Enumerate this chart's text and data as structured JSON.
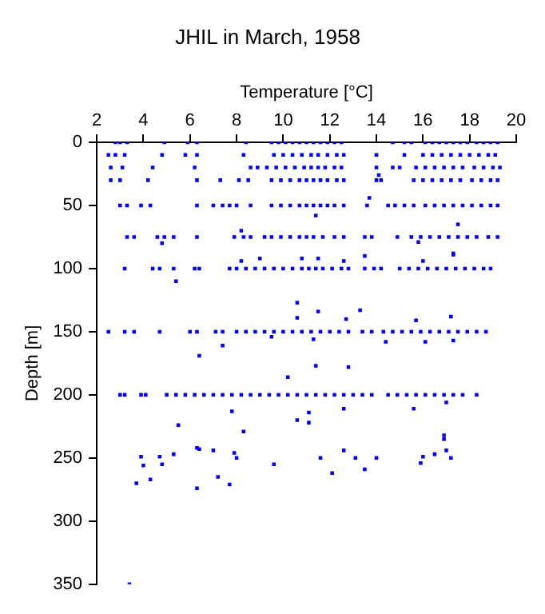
{
  "chart_data": {
    "type": "scatter",
    "title": "JHIL in March, 1958",
    "xlabel": "Temperature [°C]",
    "ylabel": "Depth [m]",
    "xlim": [
      2,
      20
    ],
    "xticks": [
      2,
      4,
      6,
      8,
      10,
      12,
      14,
      16,
      18,
      20
    ],
    "ylim": [
      350,
      0
    ],
    "yticks": [
      0,
      50,
      100,
      150,
      200,
      250,
      300,
      350
    ],
    "grid": false,
    "legend": false,
    "marker": "square",
    "series": [
      {
        "color": "#0000ff",
        "x": [
          2.8,
          3.0,
          3.3,
          4.9,
          5.9,
          6.3,
          8.4,
          9.5,
          9.8,
          10.1,
          10.4,
          10.7,
          11.0,
          11.3,
          11.6,
          11.9,
          12.2,
          12.5,
          14.7,
          15.2,
          15.5,
          16.1,
          16.4,
          16.7,
          17.0,
          17.3,
          17.6,
          17.9,
          18.3,
          18.6,
          18.9,
          19.2
        ],
        "values": [
          0,
          0,
          0,
          0,
          0,
          0,
          0,
          0,
          0,
          0,
          0,
          0,
          0,
          0,
          0,
          0,
          0,
          0,
          0,
          0,
          0,
          0,
          0,
          0,
          0,
          0,
          0,
          0,
          0,
          0,
          0,
          0
        ]
      },
      {
        "color": "#0000ff",
        "x": [
          2.5,
          2.8,
          3.2,
          4.8,
          5.8,
          6.3,
          8.3,
          9.6,
          10.0,
          10.4,
          10.8,
          11.2,
          11.5,
          11.9,
          12.3,
          12.6,
          14.0,
          15.2,
          16.0,
          16.4,
          16.8,
          17.2,
          17.6,
          18.0,
          18.4,
          18.8,
          19.1
        ],
        "values": [
          10,
          10,
          10,
          10,
          10,
          10,
          10,
          10,
          10,
          10,
          10,
          10,
          10,
          10,
          10,
          10,
          10,
          10,
          10,
          10,
          10,
          10,
          10,
          10,
          10,
          10,
          10
        ]
      },
      {
        "color": "#0000ff",
        "x": [
          2.6,
          3.1,
          4.4,
          6.2,
          8.6,
          8.9,
          9.3,
          9.7,
          10.1,
          10.5,
          10.9,
          11.2,
          11.5,
          11.8,
          12.2,
          12.5,
          14.0,
          14.7,
          15.0,
          15.7,
          16.1,
          16.5,
          16.9,
          17.3,
          17.7,
          18.2,
          18.6,
          19.0,
          19.3
        ],
        "values": [
          20,
          20,
          20,
          20,
          20,
          20,
          20,
          20,
          20,
          20,
          20,
          20,
          20,
          20,
          20,
          20,
          20,
          20,
          20,
          20,
          20,
          20,
          20,
          20,
          20,
          20,
          20,
          20,
          20
        ]
      },
      {
        "color": "#0000ff",
        "x": [
          2.6,
          3.0,
          4.2,
          6.3,
          7.3,
          8.1,
          8.5,
          9.5,
          9.9,
          10.3,
          10.7,
          11.0,
          11.3,
          11.6,
          11.9,
          12.3,
          12.6,
          14.0,
          14.2,
          15.6,
          16.0,
          16.4,
          16.8,
          17.2,
          17.6,
          18.1,
          18.5,
          18.9,
          19.2
        ],
        "values": [
          30,
          30,
          30,
          30,
          30,
          30,
          30,
          30,
          30,
          30,
          30,
          30,
          30,
          30,
          30,
          30,
          30,
          30,
          30,
          30,
          30,
          30,
          30,
          30,
          30,
          30,
          30,
          30,
          30
        ]
      },
      {
        "color": "#0000ff",
        "x": [
          3.0,
          3.3,
          3.9,
          4.3,
          6.3,
          7.0,
          7.4,
          7.7,
          8.0,
          8.6,
          9.5,
          9.9,
          10.3,
          10.7,
          11.0,
          11.3,
          11.6,
          11.9,
          12.2,
          12.6,
          13.6,
          14.5,
          14.8,
          15.2,
          15.6,
          16.1,
          16.5,
          16.9,
          17.3,
          17.7,
          18.1,
          18.5,
          18.9,
          19.2
        ],
        "values": [
          50,
          50,
          50,
          50,
          50,
          50,
          50,
          50,
          50,
          50,
          50,
          50,
          50,
          50,
          50,
          50,
          50,
          50,
          50,
          50,
          50,
          50,
          50,
          50,
          50,
          50,
          50,
          50,
          50,
          50,
          50,
          50,
          50,
          50
        ]
      },
      {
        "color": "#0000ff",
        "x": [
          3.3,
          3.6,
          4.6,
          4.9,
          5.3,
          6.3,
          7.9,
          8.3,
          8.6,
          9.2,
          9.5,
          9.9,
          10.3,
          10.7,
          11.0,
          11.3,
          11.7,
          12.2,
          12.6,
          13.5,
          13.8,
          14.9,
          15.5,
          15.9,
          16.3,
          16.7,
          17.1,
          17.5,
          17.9,
          18.3,
          18.8,
          19.2
        ],
        "values": [
          75,
          75,
          75,
          75,
          75,
          75,
          75,
          75,
          75,
          75,
          75,
          75,
          75,
          75,
          75,
          75,
          75,
          75,
          75,
          75,
          75,
          75,
          75,
          75,
          75,
          75,
          75,
          75,
          75,
          75,
          75,
          75
        ]
      },
      {
        "color": "#0000ff",
        "x": [
          3.2,
          4.4,
          4.7,
          5.3,
          6.2,
          6.4,
          7.7,
          8.0,
          8.4,
          8.8,
          9.2,
          9.6,
          10.0,
          10.4,
          10.8,
          11.1,
          11.4,
          11.7,
          12.1,
          12.5,
          12.8,
          13.5,
          13.9,
          14.2,
          15.0,
          15.4,
          15.8,
          16.2,
          16.6,
          17.0,
          17.4,
          17.8,
          18.2,
          18.6,
          18.9
        ],
        "values": [
          100,
          100,
          100,
          100,
          100,
          100,
          100,
          100,
          100,
          100,
          100,
          100,
          100,
          100,
          100,
          100,
          100,
          100,
          100,
          100,
          100,
          100,
          100,
          100,
          100,
          100,
          100,
          100,
          100,
          100,
          100,
          100,
          100,
          100,
          100
        ]
      },
      {
        "color": "#0000ff",
        "x": [
          2.5,
          3.2,
          3.6,
          4.7,
          6.0,
          6.3,
          7.1,
          7.4,
          8.0,
          8.4,
          8.8,
          9.2,
          9.6,
          10.0,
          10.4,
          10.8,
          11.2,
          11.6,
          12.0,
          12.4,
          12.8,
          13.4,
          13.8,
          14.3,
          14.7,
          15.1,
          15.5,
          15.9,
          16.3,
          16.7,
          17.1,
          17.5,
          17.9,
          18.3,
          18.7
        ],
        "values": [
          150,
          150,
          150,
          150,
          150,
          150,
          150,
          150,
          150,
          150,
          150,
          150,
          150,
          150,
          150,
          150,
          150,
          150,
          150,
          150,
          150,
          150,
          150,
          150,
          150,
          150,
          150,
          150,
          150,
          150,
          150,
          150,
          150,
          150,
          150
        ]
      },
      {
        "color": "#0000ff",
        "x": [
          3.0,
          3.2,
          3.9,
          4.1,
          5.0,
          5.4,
          5.8,
          6.2,
          6.6,
          7.0,
          7.4,
          7.8,
          8.2,
          8.6,
          9.0,
          9.4,
          9.8,
          10.2,
          10.6,
          11.0,
          11.4,
          11.8,
          12.2,
          12.6,
          13.0,
          13.4,
          13.8,
          14.5,
          14.9,
          15.3,
          15.7,
          16.1,
          16.5,
          16.9,
          17.3,
          17.7,
          18.3
        ],
        "values": [
          200,
          200,
          200,
          200,
          200,
          200,
          200,
          200,
          200,
          200,
          200,
          200,
          200,
          200,
          200,
          200,
          200,
          200,
          200,
          200,
          200,
          200,
          200,
          200,
          200,
          200,
          200,
          200,
          200,
          200,
          200,
          200,
          200,
          200,
          200,
          200,
          200
        ]
      },
      {
        "color": "#0000ff",
        "x": [
          5.4,
          6.4,
          7.4,
          5.5,
          8.3,
          7.8,
          10.6,
          11.1,
          11.1,
          11.4,
          12.8,
          10.2,
          12.6,
          15.6,
          17.0,
          16.9,
          3.4,
          3.7,
          3.9,
          4.0,
          4.3,
          4.7,
          4.8,
          5.3,
          6.3,
          6.4,
          6.3,
          7.0,
          7.2,
          7.7,
          7.9,
          8.0,
          9.6,
          11.6,
          12.1,
          12.6,
          13.1,
          13.5,
          14.0,
          15.9,
          16.0,
          16.5,
          16.9,
          17.0,
          17.2,
          10.6,
          10.6,
          11.5,
          13.3,
          12.7,
          15.7,
          17.2,
          16.1,
          14.4,
          11.3,
          17.3,
          9.5,
          9.0,
          8.2,
          10.8,
          11.5,
          12.6,
          13.5,
          16.0,
          17.3,
          13.7,
          11.4,
          17.3,
          17.5,
          8.2,
          4.8,
          15.8,
          14.1
        ],
        "values": [
          110,
          169,
          161,
          224,
          229,
          213,
          220,
          222,
          214,
          177,
          178,
          186,
          211,
          211,
          206,
          232,
          350,
          270,
          249,
          256,
          267,
          249,
          255,
          247,
          242,
          243,
          274,
          244,
          265,
          271,
          246,
          250,
          255,
          250,
          262,
          244,
          250,
          259,
          250,
          254,
          249,
          247,
          235,
          244,
          250,
          127,
          139,
          134,
          133,
          140,
          141,
          138,
          158,
          158,
          156,
          157,
          154,
          92,
          94,
          92,
          92,
          94,
          90,
          94,
          89,
          44,
          58,
          88,
          65,
          70,
          80,
          79,
          26
        ]
      }
    ]
  }
}
